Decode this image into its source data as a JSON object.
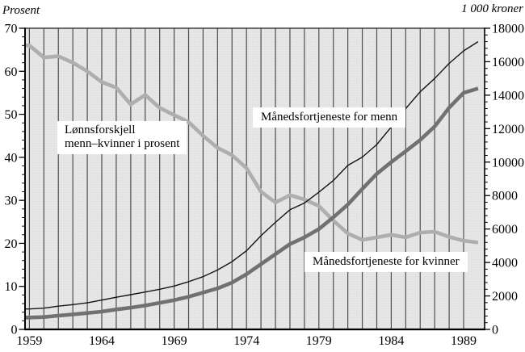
{
  "chart_data": {
    "type": "line",
    "title": "",
    "x_label": "",
    "x": [
      1959,
      1960,
      1961,
      1962,
      1963,
      1964,
      1965,
      1966,
      1967,
      1968,
      1969,
      1970,
      1971,
      1972,
      1973,
      1974,
      1975,
      1976,
      1977,
      1978,
      1979,
      1980,
      1981,
      1982,
      1983,
      1984,
      1985,
      1986,
      1987,
      1988,
      1989,
      1990
    ],
    "x_tick_labels": [
      "1959",
      "1964",
      "1969",
      "1974",
      "1979",
      "1984",
      "1989"
    ],
    "left_axis": {
      "title": "Prosent",
      "min": 0,
      "max": 70,
      "major_tick": 10,
      "minor_tick": 2,
      "tick_labels": [
        "70",
        "60",
        "50",
        "40",
        "30",
        "20",
        "10",
        "0"
      ]
    },
    "right_axis": {
      "title": "1 000 kroner",
      "min": 0,
      "max": 18000,
      "major_tick": 2000,
      "minor_tick": 400,
      "tick_labels": [
        "18000",
        "16000",
        "14000",
        "12000",
        "10000",
        "8000",
        "6000",
        "4000",
        "2000",
        "0"
      ]
    },
    "grid": "vertical-yearly",
    "legend_position": "inline-annotations",
    "series": [
      {
        "name": "Lønnsforskjell menn–kvinner i prosent",
        "axis": "left",
        "color": "#aeaeae",
        "values": [
          66,
          63.2,
          63.5,
          62,
          60,
          57.5,
          56.2,
          52.3,
          54.5,
          51.5,
          49.8,
          48.2,
          45,
          42.2,
          40.5,
          37.5,
          32,
          29.5,
          31.2,
          30.2,
          28.7,
          25.3,
          22.3,
          20.8,
          21.4,
          22,
          21.4,
          22.5,
          22.7,
          21.5,
          20.6,
          20.2
        ]
      },
      {
        "name": "Månedsfortjeneste for menn",
        "axis": "right",
        "color": "#141414",
        "values": [
          1220,
          1270,
          1390,
          1480,
          1590,
          1750,
          1920,
          2075,
          2235,
          2400,
          2590,
          2850,
          3150,
          3550,
          4050,
          4700,
          5600,
          6400,
          7150,
          7550,
          8200,
          8900,
          9800,
          10300,
          11050,
          12100,
          13200,
          14200,
          15000,
          15900,
          16650,
          17200
        ]
      },
      {
        "name": "Månedsfortjeneste for kvinner",
        "axis": "right",
        "color": "#717171",
        "values": [
          710,
          740,
          820,
          900,
          980,
          1060,
          1190,
          1300,
          1430,
          1590,
          1750,
          1950,
          2200,
          2450,
          2800,
          3300,
          3900,
          4500,
          5100,
          5500,
          6000,
          6700,
          7460,
          8400,
          9300,
          10000,
          10650,
          11320,
          12130,
          13250,
          14140,
          14400
        ]
      }
    ],
    "annotations": [
      {
        "id": "gap-label",
        "lines": [
          "Lønnsforskjell",
          "menn–kvinner i prosent"
        ]
      },
      {
        "id": "men-label",
        "text": "Månedsfortjeneste for menn"
      },
      {
        "id": "women-label",
        "text": "Månedsfortjeneste for kvinner"
      }
    ],
    "plot_background": {
      "fill": "#e7e7e7",
      "dot_color": "#cdcdcd"
    },
    "gridline_color": "#4e4e4e"
  }
}
